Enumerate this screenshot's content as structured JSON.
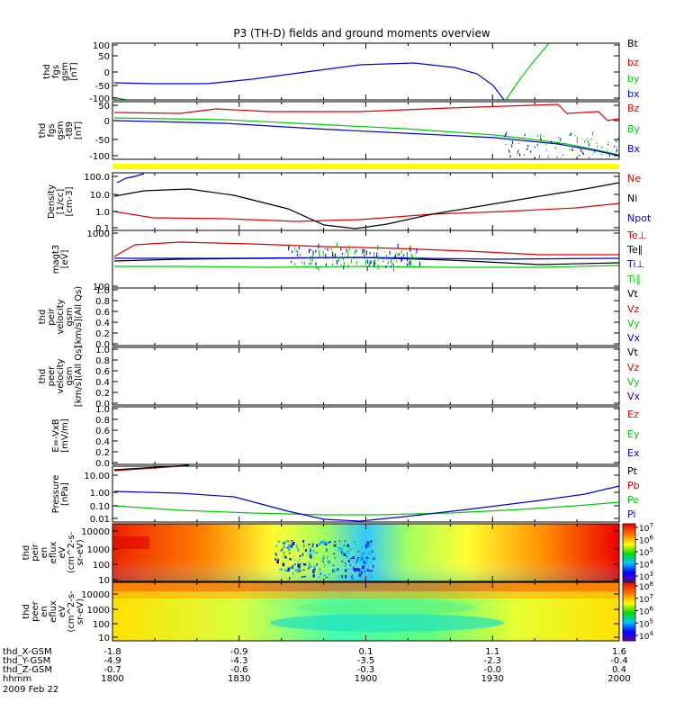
{
  "title": "P3 (TH-D) fields and ground moments overview",
  "colors": {
    "black": "#000000",
    "red": "#e00000",
    "green": "#00cc00",
    "blue": "#0000dd",
    "yellow": "#ffff00",
    "frame": "#000000"
  },
  "panels": [
    {
      "id": "fgs",
      "ylabel": [
        "thd",
        "fgs",
        "gsm",
        "[nT]"
      ],
      "yticks": [
        "100",
        "50",
        "0",
        "-50",
        "-100"
      ],
      "legend": [
        {
          "text": "Bt",
          "color": "black"
        },
        {
          "text": "bz",
          "color": "red"
        },
        {
          "text": "by",
          "color": "green"
        },
        {
          "text": "bx",
          "color": "blue"
        }
      ]
    },
    {
      "id": "fgs-t89",
      "ylabel": [
        "thd",
        "fgs",
        "gsm",
        "-t89",
        "[nT]"
      ],
      "yticks": [
        "50",
        "0",
        "-50",
        "-100"
      ],
      "legend": [
        {
          "text": "Bz",
          "color": "red"
        },
        {
          "text": "By",
          "color": "green"
        },
        {
          "text": "Bx",
          "color": "blue"
        }
      ]
    },
    {
      "id": "density",
      "ylabel": [
        "Density",
        "[1/cc]",
        "[cm-3]"
      ],
      "yticks": [
        "100.0",
        "10.0",
        "1.0",
        "0.1"
      ],
      "legend": [
        {
          "text": "Ne",
          "color": "red"
        },
        {
          "text": "Ni",
          "color": "black"
        },
        {
          "text": "Npot",
          "color": "blue"
        }
      ]
    },
    {
      "id": "temperature",
      "ylabel": [
        "magt3",
        "[eV]"
      ],
      "yticks": [
        "1000",
        "100"
      ],
      "legend": [
        {
          "text": "Te⊥",
          "color": "red"
        },
        {
          "text": "Te∥",
          "color": "black"
        },
        {
          "text": "Ti⊥",
          "color": "blue"
        },
        {
          "text": "Ti∥",
          "color": "green"
        }
      ]
    },
    {
      "id": "peir-velocity",
      "ylabel": [
        "thd",
        "peir",
        "velocity",
        "gsm",
        "[km/s](All Qs)"
      ],
      "yticks": [
        "1.0",
        "0.8",
        "0.6",
        "0.4",
        "0.2",
        "0.0"
      ],
      "legend": [
        {
          "text": "Vt",
          "color": "black"
        },
        {
          "text": "Vz",
          "color": "red"
        },
        {
          "text": "Vy",
          "color": "green"
        },
        {
          "text": "Vx",
          "color": "blue"
        }
      ]
    },
    {
      "id": "peer-velocity",
      "ylabel": [
        "thd",
        "peer",
        "velocity",
        "gsm",
        "[km/s](All Qs)"
      ],
      "yticks": [
        "1.0",
        "0.8",
        "0.6",
        "0.4",
        "0.2",
        "0.0"
      ],
      "legend": [
        {
          "text": "Vt",
          "color": "black"
        },
        {
          "text": "Vz",
          "color": "red"
        },
        {
          "text": "Vy",
          "color": "green"
        },
        {
          "text": "Vx",
          "color": "blue"
        }
      ]
    },
    {
      "id": "efield",
      "ylabel": [
        "E=-VxB",
        "[mV/m]"
      ],
      "yticks": [
        "1.0",
        "0.8",
        "0.6",
        "0.4",
        "0.2",
        "0.0"
      ],
      "legend": [
        {
          "text": "Ez",
          "color": "red"
        },
        {
          "text": "Ey",
          "color": "green"
        },
        {
          "text": "Ex",
          "color": "blue"
        }
      ]
    },
    {
      "id": "pressure",
      "ylabel": [
        "Pressure",
        "[nPa]"
      ],
      "yticks": [
        "10.00",
        "1.00",
        "0.10",
        "0.01"
      ],
      "legend": [
        {
          "text": "Pt",
          "color": "black"
        },
        {
          "text": "Pb",
          "color": "red"
        },
        {
          "text": "Pe",
          "color": "green"
        },
        {
          "text": "Pi",
          "color": "blue"
        }
      ]
    },
    {
      "id": "peir-spec",
      "ylabel": [
        "thd",
        "peir",
        "en",
        "eflux",
        "eV",
        "(cm^2-s-",
        "sr-eV)"
      ],
      "yticks": [
        "10000",
        "1000",
        "100",
        "10"
      ],
      "cbar_ticks": [
        "10^7",
        "10^6",
        "10^5",
        "10^4",
        "10^3"
      ]
    },
    {
      "id": "peer-spec",
      "ylabel": [
        "thd",
        "peer",
        "en",
        "eflux",
        "eV",
        "(cm^2-s-",
        "sr-eV)"
      ],
      "yticks": [
        "10000",
        "1000",
        "100",
        "10"
      ],
      "cbar_ticks": [
        "10^8",
        "10^7",
        "10^6",
        "10^5",
        "10^4"
      ]
    }
  ],
  "xaxis": {
    "row_labels": [
      "thd_X-GSM",
      "thd_Y-GSM",
      "thd_Z-GSM",
      "hhmm",
      "2009 Feb 22"
    ],
    "columns": [
      [
        "-1.8",
        "-4.9",
        "-0.7",
        "1800"
      ],
      [
        "-0.9",
        "-4.3",
        "-0.6",
        "1830"
      ],
      [
        "0.1",
        "-3.5",
        "-0.3",
        "1900"
      ],
      [
        "1.1",
        "-2.3",
        "-0.0",
        "1930"
      ],
      [
        "1.6",
        "-0.4",
        "0.4",
        "2000"
      ]
    ]
  },
  "chart_data": [
    {
      "type": "line",
      "title": "P3 (TH-D) fields and ground moments overview",
      "ylabel": "thd fgs gsm [nT]",
      "ylim": [
        -100,
        100
      ],
      "x_units": "hhmm",
      "series": [
        {
          "name": "by",
          "x": [
            "1948",
            "1954",
            "2000"
          ],
          "values": [
            -100,
            20,
            100
          ]
        },
        {
          "name": "bx",
          "x": [
            "1800",
            "1830",
            "1900",
            "1930",
            "1939",
            "1945"
          ],
          "values": [
            -40,
            -35,
            -10,
            20,
            15,
            -100
          ]
        }
      ]
    },
    {
      "type": "line",
      "ylabel": "thd fgs gsm -t89 [nT]",
      "ylim": [
        -110,
        60
      ],
      "series": [
        {
          "name": "Bz",
          "x": [
            "1800",
            "1900",
            "1944",
            "2000"
          ],
          "values": [
            30,
            32,
            30,
            0
          ]
        },
        {
          "name": "By",
          "x": [
            "1800",
            "1900",
            "1940",
            "2000"
          ],
          "values": [
            10,
            0,
            -10,
            -75
          ]
        },
        {
          "name": "Bx",
          "x": [
            "1800",
            "1900",
            "1940",
            "2000"
          ],
          "values": [
            0,
            -20,
            -35,
            -95
          ]
        }
      ]
    },
    {
      "type": "line",
      "ylabel": "Density [1/cc] [cm-3]",
      "scale": "log",
      "ylim": [
        0.04,
        300
      ],
      "series": [
        {
          "name": "Ne",
          "x": [
            "1800",
            "1830",
            "1900",
            "1930",
            "2000"
          ],
          "values": [
            1.0,
            0.4,
            0.25,
            0.5,
            1.2
          ]
        },
        {
          "name": "Ni",
          "x": [
            "1800",
            "1815",
            "1830",
            "1852",
            "1900",
            "1930",
            "2000"
          ],
          "values": [
            10,
            14,
            8,
            0.8,
            0.15,
            2,
            30
          ]
        },
        {
          "name": "Npot",
          "x": [
            "1800",
            "1810"
          ],
          "values": [
            50,
            100
          ]
        }
      ]
    },
    {
      "type": "line",
      "ylabel": "magt3 [eV]",
      "scale": "log",
      "ylim": [
        100,
        1000
      ],
      "series": [
        {
          "name": "Te⊥",
          "x": [
            "1800",
            "1810",
            "1900",
            "2000"
          ],
          "values": [
            400,
            700,
            500,
            400
          ]
        },
        {
          "name": "Te∥",
          "x": [
            "1800",
            "1900",
            "2000"
          ],
          "values": [
            300,
            300,
            250
          ]
        },
        {
          "name": "Ti⊥",
          "x": [
            "1800",
            "1900",
            "2000"
          ],
          "values": [
            300,
            300,
            300
          ]
        },
        {
          "name": "Ti∥",
          "x": [
            "1800",
            "1900",
            "2000"
          ],
          "values": [
            200,
            200,
            200
          ]
        }
      ]
    },
    {
      "type": "line",
      "ylabel": "thd peir velocity gsm [km/s](All Qs)",
      "ylim": [
        0,
        1
      ],
      "series": []
    },
    {
      "type": "line",
      "ylabel": "thd peer velocity gsm [km/s](All Qs)",
      "ylim": [
        0,
        1
      ],
      "series": []
    },
    {
      "type": "line",
      "ylabel": "E=-VxB [mV/m]",
      "ylim": [
        0,
        1
      ],
      "series": []
    },
    {
      "type": "line",
      "ylabel": "Pressure [nPa]",
      "scale": "log",
      "ylim": [
        0.005,
        30
      ],
      "series": [
        {
          "name": "Pt",
          "x": [
            "1800",
            "1820"
          ],
          "values": [
            20,
            40
          ]
        },
        {
          "name": "Pb",
          "x": [
            "1800",
            "1820"
          ],
          "values": [
            18,
            38
          ]
        },
        {
          "name": "Pe",
          "x": [
            "1800",
            "1830",
            "1900",
            "1930",
            "2000"
          ],
          "values": [
            0.06,
            0.03,
            0.015,
            0.03,
            0.1
          ]
        },
        {
          "name": "Pi",
          "x": [
            "1800",
            "1830",
            "1900",
            "1930",
            "2000"
          ],
          "values": [
            0.8,
            0.5,
            0.006,
            0.1,
            2.0
          ]
        }
      ]
    },
    {
      "type": "heatmap",
      "ylabel": "thd peir en eflux eV (cm^2-s-sr-eV)",
      "scale": "log",
      "ylim": [
        5,
        30000
      ],
      "zlim": [
        1000,
        10000000
      ]
    },
    {
      "type": "heatmap",
      "ylabel": "thd peer en eflux eV (cm^2-s-sr-eV)",
      "scale": "log",
      "ylim": [
        5,
        30000
      ],
      "zlim": [
        10000,
        100000000
      ]
    }
  ]
}
